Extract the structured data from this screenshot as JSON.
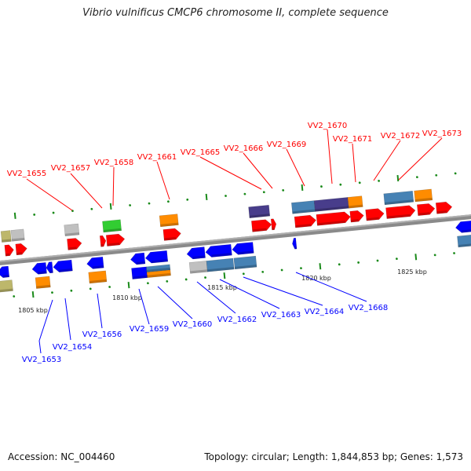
{
  "title": "Vibrio vulnificus CMCP6 chromosome II, complete sequence",
  "footer": {
    "accession": "Accession: NC_004460",
    "summary": "Topology: circular; Length: 1,844,853 bp; Genes: 1,573"
  },
  "scale_labels": [
    "1805 kbp",
    "1810 kbp",
    "1815 kbp",
    "1820 kbp",
    "1825 kbp"
  ],
  "forward_genes": [
    "VV2_1655",
    "VV2_1657",
    "VV2_1658",
    "VV2_1661",
    "VV2_1665",
    "VV2_1666",
    "VV2_1669",
    "VV2_1670",
    "VV2_1671",
    "VV2_1672",
    "VV2_1673"
  ],
  "reverse_genes": [
    "VV2_1653",
    "VV2_1654",
    "VV2_1656",
    "VV2_1659",
    "VV2_1660",
    "VV2_1662",
    "VV2_1663",
    "VV2_1664",
    "VV2_1668"
  ],
  "colors": {
    "forward": "#ff0000",
    "reverse": "#0000ff",
    "backbone": "#808080",
    "tick": "#1a8a1a",
    "steelblue": "#4682b4",
    "orange": "#ff8c00",
    "purple": "#483d8b",
    "green": "#32cd32",
    "gray": "#c0c0c0",
    "tan": "#bdb76b"
  }
}
